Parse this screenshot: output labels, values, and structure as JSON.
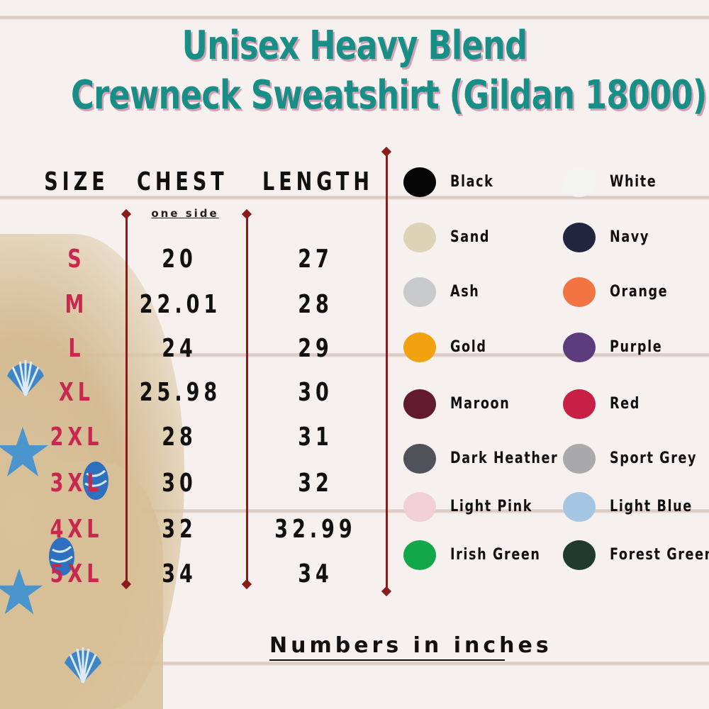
{
  "title": {
    "line1": "Unisex Heavy Blend",
    "line2": "Crewneck Sweatshirt (Gildan 18000)"
  },
  "table": {
    "headers": {
      "size": "SIZE",
      "chest": "CHEST",
      "length": "LENGTH"
    },
    "chest_note": "one side",
    "rows": [
      {
        "size": "S",
        "chest": "20",
        "length": "27"
      },
      {
        "size": "M",
        "chest": "22.01",
        "length": "28"
      },
      {
        "size": "L",
        "chest": "24",
        "length": "29"
      },
      {
        "size": "XL",
        "chest": "25.98",
        "length": "30"
      },
      {
        "size": "2XL",
        "chest": "28",
        "length": "31"
      },
      {
        "size": "3XL",
        "chest": "30",
        "length": "32"
      },
      {
        "size": "4XL",
        "chest": "32",
        "length": "32.99"
      },
      {
        "size": "5XL",
        "chest": "34",
        "length": "34"
      }
    ]
  },
  "colors": [
    {
      "name": "Black",
      "hex": "#050505"
    },
    {
      "name": "White",
      "hex": "#f3f3f1"
    },
    {
      "name": "Sand",
      "hex": "#ddd3b6"
    },
    {
      "name": "Navy",
      "hex": "#22253f"
    },
    {
      "name": "Ash",
      "hex": "#c7cacb"
    },
    {
      "name": "Orange",
      "hex": "#f37443"
    },
    {
      "name": "Gold",
      "hex": "#f2a10f"
    },
    {
      "name": "Purple",
      "hex": "#5c3c7c"
    },
    {
      "name": "Maroon",
      "hex": "#611b2c"
    },
    {
      "name": "Red",
      "hex": "#c81f44"
    },
    {
      "name": "Dark Heather",
      "hex": "#4f5359"
    },
    {
      "name": "Sport Grey",
      "hex": "#a9a9ab"
    },
    {
      "name": "Light Pink",
      "hex": "#f0cfd6"
    },
    {
      "name": "Light Blue",
      "hex": "#a5c6e2"
    },
    {
      "name": "Irish Green",
      "hex": "#12a84a"
    },
    {
      "name": "Forest Green",
      "hex": "#213a30"
    }
  ],
  "footer": "Numbers in inches",
  "accent": {
    "title": "#178f86",
    "size": "#c8284f",
    "divider": "#8a1b1b"
  }
}
